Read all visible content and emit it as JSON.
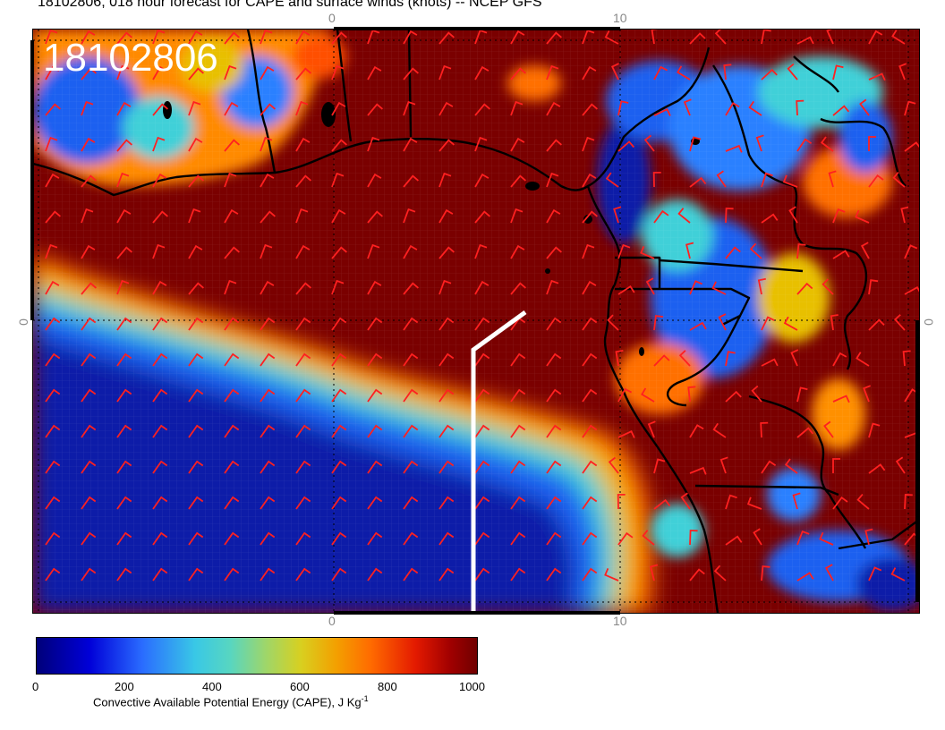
{
  "header": {
    "title": "18102806, 018 hour forecast for CAPE and surface winds (knots) -- NCEP GFS"
  },
  "map": {
    "timestamp": "18102806",
    "lon_ticks_top": [
      "0",
      "10"
    ],
    "lon_ticks_bottom": [
      "0",
      "10"
    ],
    "lat_tick_left": "0",
    "lat_tick_right": "0",
    "colors": {
      "high_cape": "#7a0000",
      "low_cape": "#0a1fa8",
      "wind_barb": "#ff2020",
      "coastline": "#000000",
      "route": "#ffffff"
    }
  },
  "colorbar": {
    "labels": [
      "0",
      "200",
      "400",
      "600",
      "800",
      "1000"
    ],
    "title_main": "Convective Available Potential Energy (CAPE), J Kg",
    "title_sup": "-1"
  }
}
